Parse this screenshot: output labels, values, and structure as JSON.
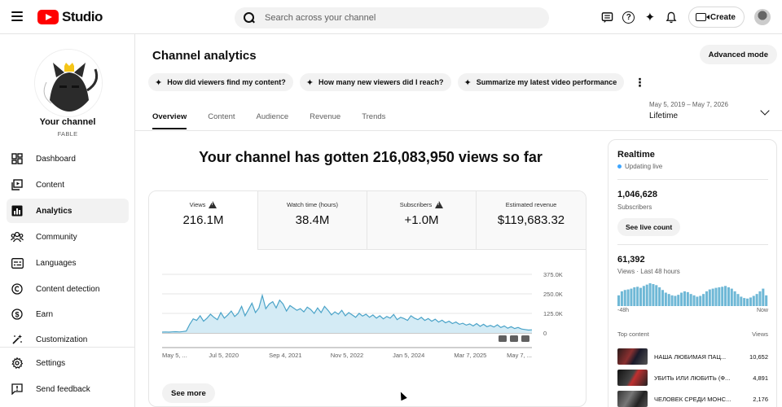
{
  "app": {
    "logo_text": "Studio"
  },
  "search": {
    "placeholder": "Search across your channel"
  },
  "header": {
    "create_label": "Create"
  },
  "channel": {
    "name": "Your channel",
    "handle": "FABLE"
  },
  "sidebar": {
    "items": [
      {
        "label": "Dashboard",
        "icon": "dashboard-icon"
      },
      {
        "label": "Content",
        "icon": "content-icon"
      },
      {
        "label": "Analytics",
        "icon": "analytics-icon",
        "active": true
      },
      {
        "label": "Community",
        "icon": "community-icon"
      },
      {
        "label": "Languages",
        "icon": "languages-icon"
      },
      {
        "label": "Content detection",
        "icon": "copyright-icon"
      },
      {
        "label": "Earn",
        "icon": "dollar-icon"
      },
      {
        "label": "Customization",
        "icon": "customization-icon"
      },
      {
        "label": "Settings",
        "icon": "gear-icon"
      },
      {
        "label": "Send feedback",
        "icon": "feedback-icon"
      }
    ]
  },
  "page": {
    "title": "Channel analytics",
    "advanced_mode_label": "Advanced mode",
    "chips": [
      "How did viewers find my content?",
      "How many new viewers did I reach?",
      "Summarize my latest video performance"
    ],
    "tabs": [
      "Overview",
      "Content",
      "Audience",
      "Revenue",
      "Trends"
    ],
    "active_tab": "Overview",
    "date_range": {
      "range": "May 5, 2019 – May 7, 2026",
      "label": "Lifetime"
    },
    "headline": "Your channel has gotten 216,083,950 views so far",
    "see_more_label": "See more"
  },
  "metrics": [
    {
      "label": "Views",
      "value": "216.1M",
      "warning": true,
      "active": true
    },
    {
      "label": "Watch time (hours)",
      "value": "38.4M",
      "warning": false
    },
    {
      "label": "Subscribers",
      "value": "+1.0M",
      "warning": true
    },
    {
      "label": "Estimated revenue",
      "value": "$119,683.32",
      "warning": false
    }
  ],
  "chart_data": {
    "type": "area",
    "series": [
      {
        "values": [
          5,
          6,
          5,
          7,
          8,
          6,
          9,
          12,
          55,
          90,
          80,
          110,
          75,
          95,
          120,
          100,
          85,
          130,
          95,
          115,
          140,
          105,
          125,
          170,
          110,
          150,
          190,
          130,
          160,
          240,
          155,
          185,
          200,
          160,
          210,
          185,
          140,
          175,
          160,
          145,
          155,
          135,
          165,
          150,
          125,
          160,
          130,
          170,
          145,
          115,
          135,
          120,
          145,
          110,
          130,
          115,
          100,
          125,
          108,
          120,
          100,
          115,
          95,
          110,
          90,
          105,
          95,
          118,
          85,
          100,
          92,
          80,
          110,
          95,
          85,
          100,
          80,
          92,
          75,
          88,
          70,
          82,
          65,
          75,
          60,
          70,
          55,
          62,
          50,
          58,
          45,
          60,
          42,
          55,
          40,
          48,
          38,
          52,
          35,
          45,
          30,
          40,
          28,
          35,
          25,
          22,
          18,
          20
        ]
      }
    ],
    "x_tick_labels": [
      "May 5, ...",
      "Jul 5, 2020",
      "Sep 4, 2021",
      "Nov 5, 2022",
      "Jan 5, 2024",
      "Mar 7, 2025",
      "May 7, ..."
    ],
    "y_tick_labels": [
      "375.0K",
      "250.0K",
      "125.0K",
      "0"
    ],
    "ylim": [
      0,
      375000
    ],
    "grid": true,
    "line_color": "#4aa3c8",
    "fill_color": "#d4ebf5"
  },
  "realtime": {
    "title": "Realtime",
    "status": "Updating live",
    "subscribers_value": "1,046,628",
    "subscribers_label": "Subscribers",
    "live_count_label": "See live count",
    "views_value": "61,392",
    "views_label": "Views · Last 48 hours",
    "mini_chart_start": "-48h",
    "mini_chart_end": "Now",
    "mini_chart_values": [
      40,
      55,
      60,
      62,
      65,
      70,
      72,
      68,
      75,
      80,
      85,
      82,
      78,
      70,
      60,
      50,
      45,
      40,
      38,
      42,
      50,
      55,
      52,
      45,
      40,
      35,
      38,
      45,
      55,
      62,
      65,
      68,
      70,
      72,
      75,
      70,
      65,
      55,
      45,
      35,
      30,
      28,
      32,
      38,
      45,
      55,
      65,
      40
    ],
    "top_content_label": "Top content",
    "top_content_value_label": "Views",
    "top_content": [
      {
        "title": "НАША ЛЮБИМАЯ ПАЦ...",
        "views": "10,652"
      },
      {
        "title": "УБИТЬ ИЛИ ЛЮБИТЬ (Ф...",
        "views": "4,891"
      },
      {
        "title": "ЧЕЛОВЕК СРЕДИ МОНС...",
        "views": "2,176"
      }
    ]
  },
  "colors": {
    "accent_blue": "#3ea6ff",
    "youtube_red": "#ff0000"
  }
}
